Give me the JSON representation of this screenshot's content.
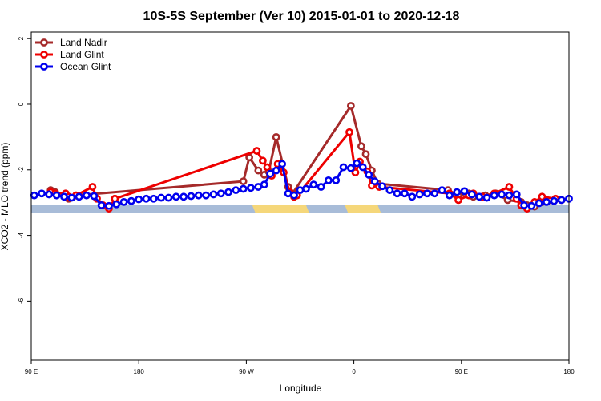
{
  "chart_data": {
    "type": "line",
    "title": "10S-5S September (Ver 10)   2015-01-01 to 2020-12-18",
    "xlabel": "Longitude",
    "ylabel": "XCO2 - MLO trend (ppm)",
    "xlim": [
      90,
      450
    ],
    "ylim": [
      -7.8,
      2.2
    ],
    "x_ticks": [
      {
        "value": 90,
        "label": "90 E"
      },
      {
        "value": 162,
        "label": "180"
      },
      {
        "value": 234,
        "label": "90 W"
      },
      {
        "value": 306,
        "label": "0"
      },
      {
        "value": 378,
        "label": "90 E"
      },
      {
        "value": 450,
        "label": "180"
      }
    ],
    "y_ticks": [
      {
        "value": 2,
        "label": "2"
      },
      {
        "value": 0,
        "label": "0"
      },
      {
        "value": -2,
        "label": "-2"
      },
      {
        "value": -4,
        "label": "-4"
      },
      {
        "value": -6,
        "label": "-6"
      }
    ],
    "legend": {
      "position": "top-left"
    },
    "grid": false,
    "map_strip": {
      "y_top": -3.08,
      "y_bottom": -3.32,
      "ocean_color": "#a8bcd8",
      "land_color": "#f5d77a",
      "land_segments": [
        [
          238,
          274
        ],
        [
          300,
          322
        ]
      ]
    },
    "series": [
      {
        "name": "Land Nadir",
        "color": "#a52a2a",
        "x": [
          103,
          106,
          113,
          115,
          120,
          232,
          236,
          242,
          246,
          249,
          254,
          262,
          265,
          304,
          311,
          314,
          318,
          322,
          369,
          376,
          383,
          386,
          394,
          401,
          409,
          418,
          422,
          427,
          445
        ],
        "y": [
          -2.62,
          -2.68,
          -2.75,
          -2.88,
          -2.78,
          -2.35,
          -1.62,
          -2.02,
          -2.15,
          -2.05,
          -1.0,
          -2.52,
          -2.72,
          -0.05,
          -1.28,
          -1.52,
          -2.02,
          -2.42,
          -2.62,
          -2.78,
          -2.72,
          -2.82,
          -2.78,
          -2.72,
          -2.92,
          -2.98,
          -3.08,
          -3.12,
          -2.92
        ]
      },
      {
        "name": "Land Glint",
        "color": "#ee0000",
        "x": [
          103,
          106,
          113,
          115,
          120,
          131,
          134,
          138,
          142,
          146,
          241,
          245,
          248,
          251,
          255,
          259,
          263,
          266,
          268,
          303,
          307,
          310,
          315,
          318,
          323,
          370,
          376,
          383,
          386,
          392,
          400,
          410,
          415,
          418,
          422,
          427,
          432,
          441
        ],
        "y": [
          -2.68,
          -2.72,
          -2.72,
          -2.82,
          -2.78,
          -2.52,
          -2.88,
          -3.08,
          -3.18,
          -2.88,
          -1.42,
          -1.72,
          -1.92,
          -2.18,
          -1.82,
          -2.08,
          -2.68,
          -2.82,
          -2.78,
          -0.85,
          -2.08,
          -1.75,
          -2.05,
          -2.48,
          -2.52,
          -2.72,
          -2.92,
          -2.78,
          -2.72,
          -2.82,
          -2.72,
          -2.52,
          -2.88,
          -3.08,
          -3.18,
          -2.98,
          -2.82,
          -2.88
        ]
      },
      {
        "name": "Ocean Glint",
        "color": "#0000ee",
        "x": [
          92,
          97,
          102,
          107,
          112,
          117,
          122,
          127,
          132,
          137,
          142,
          147,
          152,
          157,
          162,
          167,
          172,
          177,
          182,
          187,
          192,
          197,
          202,
          207,
          212,
          217,
          222,
          227,
          232,
          237,
          242,
          246,
          250,
          254,
          258,
          262,
          266,
          270,
          274,
          279,
          284,
          289,
          294,
          299,
          304,
          308,
          312,
          316,
          320,
          325,
          330,
          335,
          340,
          345,
          350,
          355,
          360,
          365,
          370,
          375,
          380,
          385,
          390,
          395,
          400,
          405,
          410,
          415,
          420,
          425,
          430,
          435,
          440,
          445,
          450
        ],
        "y": [
          -2.78,
          -2.72,
          -2.75,
          -2.78,
          -2.82,
          -2.85,
          -2.82,
          -2.78,
          -2.8,
          -3.08,
          -3.1,
          -3.05,
          -2.98,
          -2.95,
          -2.9,
          -2.88,
          -2.88,
          -2.85,
          -2.85,
          -2.82,
          -2.82,
          -2.8,
          -2.78,
          -2.78,
          -2.75,
          -2.72,
          -2.68,
          -2.62,
          -2.58,
          -2.55,
          -2.52,
          -2.45,
          -2.12,
          -2.02,
          -1.82,
          -2.72,
          -2.78,
          -2.62,
          -2.58,
          -2.45,
          -2.52,
          -2.32,
          -2.32,
          -1.92,
          -1.95,
          -1.8,
          -1.92,
          -2.15,
          -2.35,
          -2.5,
          -2.62,
          -2.72,
          -2.72,
          -2.82,
          -2.75,
          -2.72,
          -2.72,
          -2.62,
          -2.78,
          -2.68,
          -2.65,
          -2.75,
          -2.82,
          -2.85,
          -2.78,
          -2.75,
          -2.78,
          -2.75,
          -3.08,
          -3.1,
          -3.02,
          -2.98,
          -2.95,
          -2.92,
          -2.88
        ]
      }
    ]
  }
}
